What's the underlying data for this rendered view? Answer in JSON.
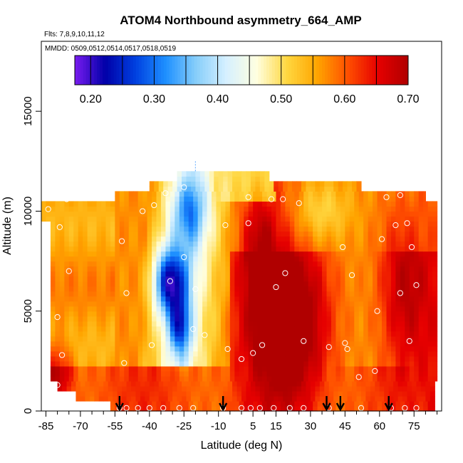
{
  "chart_data": {
    "type": "heatmap",
    "title": "ATOM4 Northbound asymmetry_664_AMP",
    "flights_note": "Flts: 7,8,9,10,11,12",
    "dates_note": "MMDD: 0509,0512,0514,0517,0518,0519",
    "xlabel": "Latitude (deg N)",
    "ylabel": "Altitude (m)",
    "xlim": [
      -87,
      87
    ],
    "ylim": [
      0,
      18500
    ],
    "x_tick_labels": [
      "-85",
      "-70",
      "-55",
      "-40",
      "-25",
      "-10",
      "5",
      "15",
      "30",
      "45",
      "60",
      "75"
    ],
    "x_ticks": [
      -85,
      -70,
      -55,
      -40,
      -25,
      -10,
      5,
      15,
      30,
      45,
      60,
      75
    ],
    "x_minor_ticks": [
      -80,
      -75,
      -65,
      -60,
      -50,
      -45,
      -35,
      -30,
      -20,
      -15,
      -5,
      0,
      10,
      20,
      25,
      35,
      40,
      50,
      55,
      65,
      70,
      80,
      85
    ],
    "y_tick_labels": [
      "0",
      "5000",
      "10000",
      "15000"
    ],
    "y_ticks": [
      0,
      5000,
      10000,
      15000
    ],
    "colorbar": {
      "min": 0.175,
      "max": 0.7,
      "ticks": [
        0.2,
        0.3,
        0.4,
        0.5,
        0.6,
        0.7
      ],
      "tick_labels": [
        "0.20",
        "0.30",
        "0.40",
        "0.50",
        "0.60",
        "0.70"
      ],
      "divisions": [
        0.2,
        0.25,
        0.3,
        0.35,
        0.4,
        0.45,
        0.5,
        0.55,
        0.6,
        0.65,
        0.7
      ],
      "colors": [
        "#7a1cf0",
        "#0000a8",
        "#0040e0",
        "#1e90ff",
        "#87cefa",
        "#d6f0ff",
        "#ffffe0",
        "#ffd740",
        "#ffa500",
        "#ff5000",
        "#e60000",
        "#b00000"
      ]
    },
    "field_rows": [
      {
        "alt": [
          0,
          500
        ],
        "lat": [
          -57,
          84
        ]
      },
      {
        "alt": [
          500,
          1000
        ],
        "lat": [
          -72,
          84
        ]
      },
      {
        "alt": [
          1000,
          1500
        ],
        "lat": [
          -80,
          84
        ]
      },
      {
        "alt": [
          1500,
          9500
        ],
        "lat": [
          -83,
          85
        ]
      },
      {
        "alt": [
          9500,
          10500
        ],
        "lat": [
          -87,
          85
        ]
      },
      {
        "alt": [
          10500,
          11000
        ],
        "lat": [
          -55,
          80
        ]
      },
      {
        "alt": [
          11000,
          11500
        ],
        "lat": [
          -40,
          52
        ]
      },
      {
        "alt": [
          11500,
          12000
        ],
        "lat": [
          -28,
          12
        ]
      }
    ],
    "field_blobs": [
      {
        "lat": -31,
        "alt": 6500,
        "latw": 7,
        "altw": 1700,
        "v": -0.28
      },
      {
        "lat": -27,
        "alt": 4200,
        "latw": 5,
        "altw": 1400,
        "v": -0.18
      },
      {
        "lat": -23,
        "alt": 10000,
        "latw": 8,
        "altw": 1800,
        "v": -0.14
      },
      {
        "lat": 20,
        "alt": 4500,
        "latw": 16,
        "altw": 3500,
        "v": 0.14
      },
      {
        "lat": 8,
        "alt": 8500,
        "latw": 8,
        "altw": 2500,
        "v": 0.09
      },
      {
        "lat": 70,
        "alt": 6500,
        "latw": 10,
        "altw": 4000,
        "v": 0.08
      },
      {
        "lat": -80,
        "alt": 2000,
        "latw": 6,
        "altw": 1500,
        "v": 0.1
      },
      {
        "lat": 35,
        "alt": 10000,
        "latw": 12,
        "altw": 1500,
        "v": -0.06
      }
    ],
    "measurement_points": [
      {
        "lat": -84,
        "alt": 10100
      },
      {
        "lat": -76,
        "alt": 10600
      },
      {
        "lat": -79,
        "alt": 9200
      },
      {
        "lat": -80,
        "alt": 4700
      },
      {
        "lat": -78,
        "alt": 2800
      },
      {
        "lat": -80,
        "alt": 1300
      },
      {
        "lat": -75,
        "alt": 7000
      },
      {
        "lat": -52,
        "alt": 8500
      },
      {
        "lat": -50,
        "alt": 5900
      },
      {
        "lat": -51,
        "alt": 2400
      },
      {
        "lat": -43,
        "alt": 10000
      },
      {
        "lat": -38,
        "alt": 10300
      },
      {
        "lat": -39,
        "alt": 3300
      },
      {
        "lat": -33,
        "alt": 10900
      },
      {
        "lat": -31,
        "alt": 6500
      },
      {
        "lat": -25,
        "alt": 11200
      },
      {
        "lat": -25,
        "alt": 7700
      },
      {
        "lat": -20,
        "alt": 6100
      },
      {
        "lat": -21,
        "alt": 4100
      },
      {
        "lat": -16,
        "alt": 3800
      },
      {
        "lat": -7,
        "alt": 9300
      },
      {
        "lat": -6,
        "alt": 3100
      },
      {
        "lat": 3,
        "alt": 10700
      },
      {
        "lat": 3,
        "alt": 9400
      },
      {
        "lat": 0,
        "alt": 2600
      },
      {
        "lat": 5,
        "alt": 2900
      },
      {
        "lat": 9,
        "alt": 3300
      },
      {
        "lat": 13,
        "alt": 10600
      },
      {
        "lat": 18,
        "alt": 10600
      },
      {
        "lat": 15,
        "alt": 6200
      },
      {
        "lat": 19,
        "alt": 6900
      },
      {
        "lat": 25,
        "alt": 10400
      },
      {
        "lat": 27,
        "alt": 3500
      },
      {
        "lat": 38,
        "alt": 3200
      },
      {
        "lat": 44,
        "alt": 8200
      },
      {
        "lat": 45,
        "alt": 3400
      },
      {
        "lat": 46,
        "alt": 3100
      },
      {
        "lat": 48,
        "alt": 6800
      },
      {
        "lat": 51,
        "alt": 1700
      },
      {
        "lat": 55,
        "alt": 11200
      },
      {
        "lat": 58,
        "alt": 2000
      },
      {
        "lat": 59,
        "alt": 5000
      },
      {
        "lat": 61,
        "alt": 8600
      },
      {
        "lat": 63,
        "alt": 10700
      },
      {
        "lat": 67,
        "alt": 9300
      },
      {
        "lat": 69,
        "alt": 10800
      },
      {
        "lat": 72,
        "alt": 9400
      },
      {
        "lat": 74,
        "alt": 8200
      },
      {
        "lat": 73,
        "alt": 3500
      },
      {
        "lat": 69,
        "alt": 5900
      },
      {
        "lat": 76,
        "alt": 6300
      },
      {
        "lat": -53,
        "alt": 150
      },
      {
        "lat": -50,
        "alt": 150
      },
      {
        "lat": -45,
        "alt": 150
      },
      {
        "lat": -40,
        "alt": 150
      },
      {
        "lat": -34,
        "alt": 150
      },
      {
        "lat": -27,
        "alt": 150
      },
      {
        "lat": -21,
        "alt": 150
      },
      {
        "lat": -8,
        "alt": 150
      },
      {
        "lat": 0,
        "alt": 150
      },
      {
        "lat": 4,
        "alt": 150
      },
      {
        "lat": 8,
        "alt": 150
      },
      {
        "lat": 14,
        "alt": 150
      },
      {
        "lat": 21,
        "alt": 150
      },
      {
        "lat": 27,
        "alt": 150
      },
      {
        "lat": 38,
        "alt": 150
      },
      {
        "lat": 52,
        "alt": 150
      },
      {
        "lat": 65,
        "alt": 150
      },
      {
        "lat": 71,
        "alt": 150
      },
      {
        "lat": 76,
        "alt": 150
      }
    ],
    "profile_arrows": [
      -53,
      -8,
      37,
      43,
      64
    ],
    "top_marker": {
      "lat": -20,
      "alt": [
        12000,
        12500
      ]
    }
  }
}
